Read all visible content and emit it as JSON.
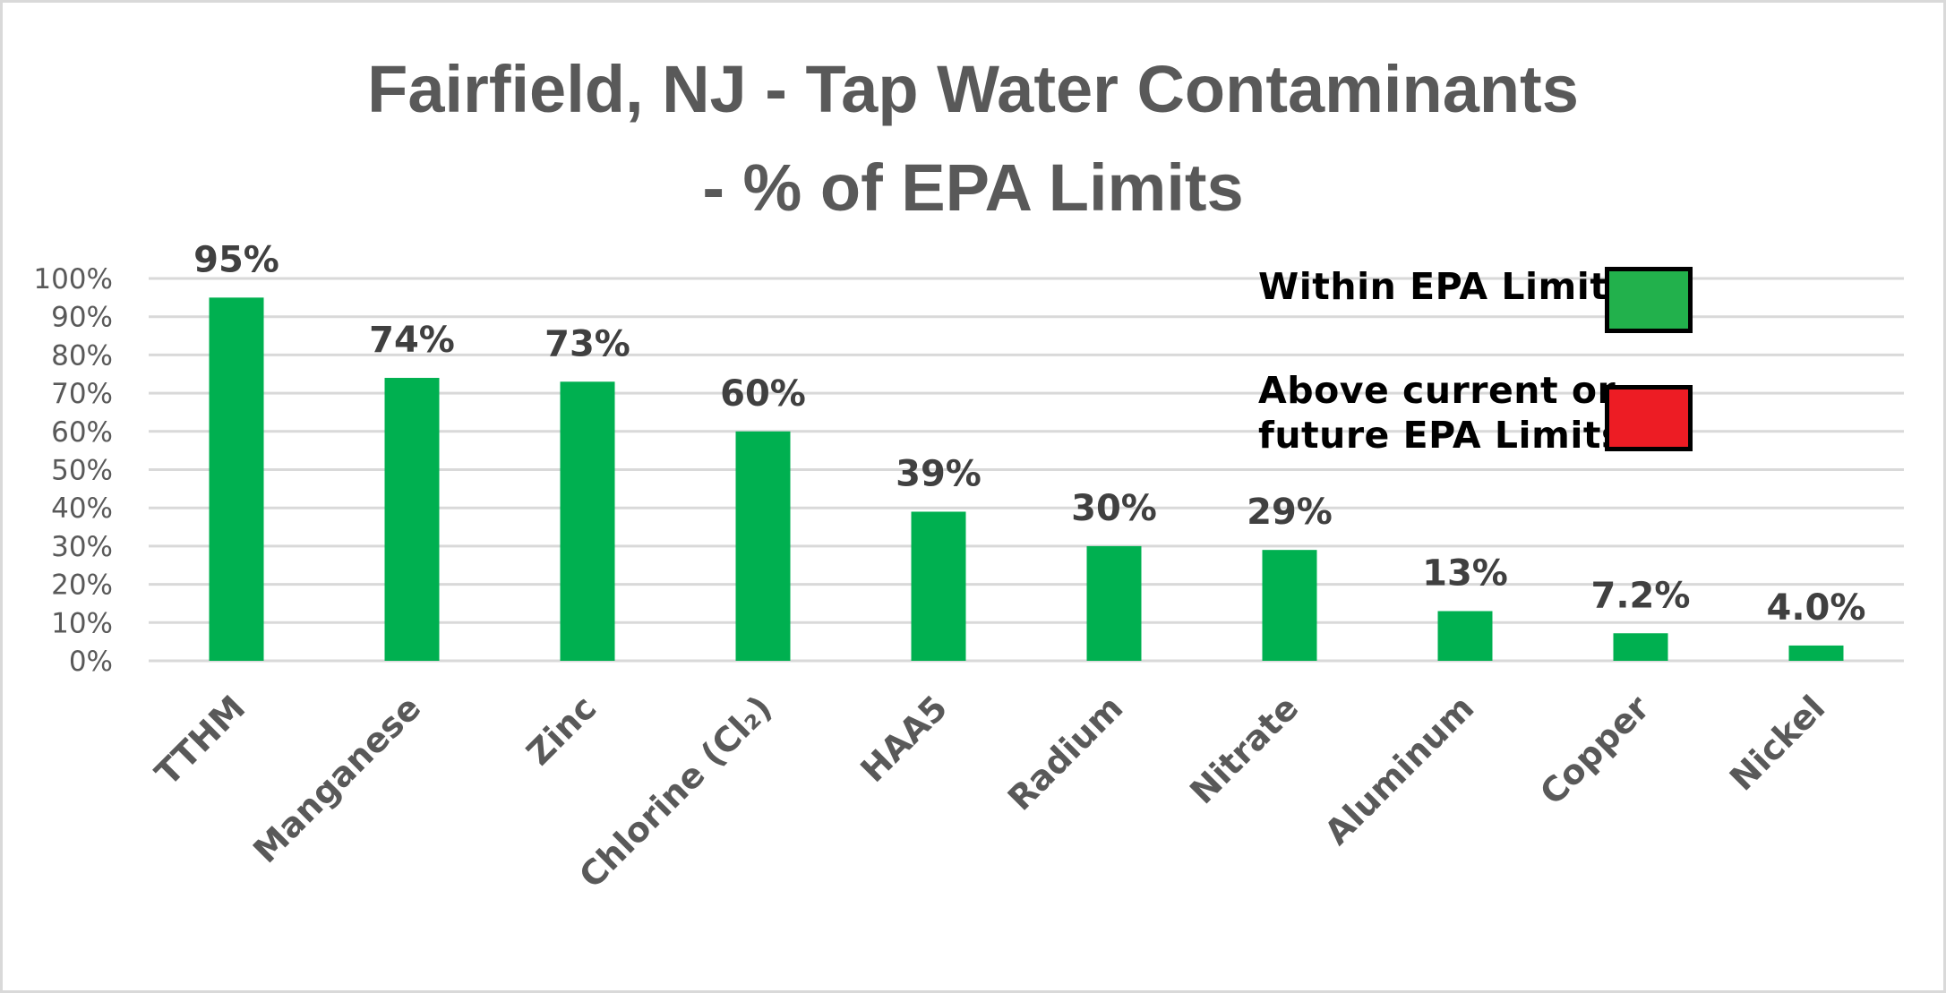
{
  "chart_data": {
    "type": "bar",
    "title": "Fairfield, NJ - Tap Water Contaminants - % of EPA  Limits",
    "title_lines": [
      "Fairfield, NJ - Tap Water Contaminants",
      "- % of EPA  Limits"
    ],
    "categories": [
      "TTHM",
      "Manganese",
      "Zinc",
      "Chlorine (Cl₂)",
      "HAA5",
      "Radium",
      "Nitrate",
      "Aluminum",
      "Copper",
      "Nickel"
    ],
    "values": [
      95,
      74,
      73,
      60,
      39,
      30,
      29,
      13,
      7.2,
      4.0
    ],
    "data_labels": [
      "95%",
      "74%",
      "73%",
      "60%",
      "39%",
      "30%",
      "29%",
      "13%",
      "7.2%",
      "4.0%"
    ],
    "bar_colors": [
      "#00b050",
      "#00b050",
      "#00b050",
      "#00b050",
      "#00b050",
      "#00b050",
      "#00b050",
      "#00b050",
      "#00b050",
      "#00b050"
    ],
    "yticks": [
      "0%",
      "10%",
      "20%",
      "30%",
      "40%",
      "50%",
      "60%",
      "70%",
      "80%",
      "90%",
      "100%"
    ],
    "ylim": [
      0,
      100
    ],
    "xlabel": "",
    "ylabel": "",
    "grid": true,
    "legend_position": "top-right",
    "legend": [
      {
        "label": "Within  EPA Limits",
        "lines": [
          "Within  EPA Limits"
        ],
        "color": "#22b14c"
      },
      {
        "label": "Above current or future EPA Limits",
        "lines": [
          "Above current or",
          "future EPA Limits"
        ],
        "color": "#ed1c24"
      }
    ]
  }
}
